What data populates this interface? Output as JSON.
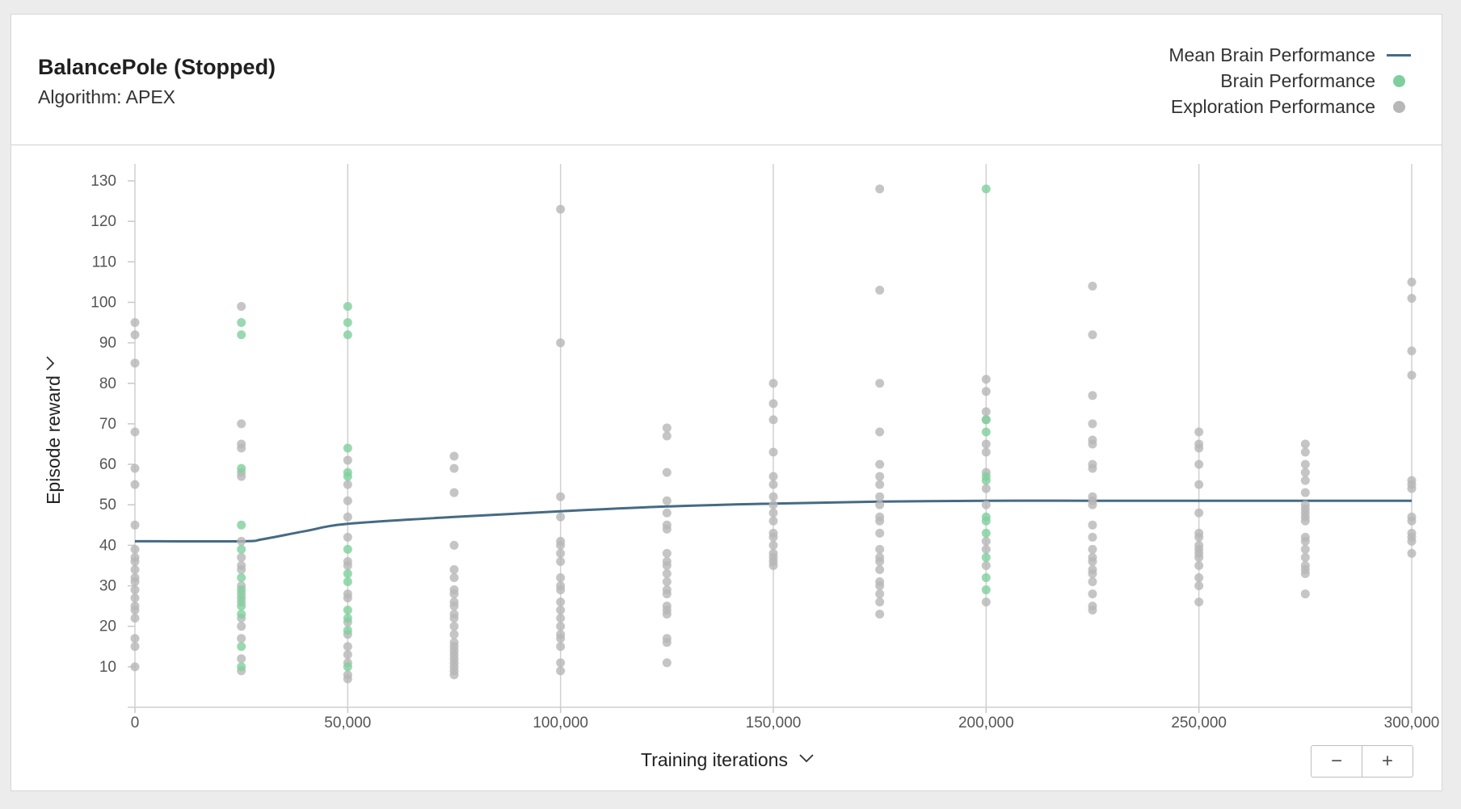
{
  "header": {
    "title": "BalancePole (Stopped)",
    "subtitle": "Algorithm: APEX"
  },
  "legend": [
    {
      "label": "Mean Brain Performance",
      "kind": "line",
      "color": "#456b84"
    },
    {
      "label": "Brain Performance",
      "kind": "dot",
      "color": "#7fcf9c"
    },
    {
      "label": "Exploration Performance",
      "kind": "dot",
      "color": "#b7b7b7"
    }
  ],
  "controls": {
    "zoom_out": "−",
    "zoom_in": "+"
  },
  "chart_data": {
    "type": "scatter",
    "xlabel": "Training iterations",
    "ylabel": "Episode reward",
    "xlim": [
      0,
      300000
    ],
    "ylim": [
      0,
      130
    ],
    "xticks": [
      0,
      50000,
      100000,
      150000,
      200000,
      250000,
      300000
    ],
    "xtick_labels": [
      "0",
      "50,000",
      "100,000",
      "150,000",
      "200,000",
      "250,000",
      "300,000"
    ],
    "yticks": [
      10,
      20,
      30,
      40,
      50,
      60,
      70,
      80,
      90,
      100,
      110,
      120,
      130
    ],
    "vertical_grid": true,
    "horizontal_grid": false,
    "legend_position": "top-right",
    "series": [
      {
        "name": "Mean Brain Performance",
        "type": "line",
        "color": "#456b84",
        "points": [
          [
            0,
            41
          ],
          [
            25000,
            41
          ],
          [
            30000,
            41.5
          ],
          [
            40000,
            43.5
          ],
          [
            50000,
            45.3
          ],
          [
            75000,
            47
          ],
          [
            100000,
            48.4
          ],
          [
            125000,
            49.6
          ],
          [
            150000,
            50.3
          ],
          [
            175000,
            50.8
          ],
          [
            200000,
            51
          ],
          [
            225000,
            51
          ],
          [
            250000,
            51
          ],
          [
            275000,
            51
          ],
          [
            300000,
            51
          ]
        ]
      },
      {
        "name": "Brain Performance",
        "type": "scatter",
        "color": "#7fcf9c",
        "points": [
          [
            25000,
            95
          ],
          [
            25000,
            92
          ],
          [
            25000,
            59
          ],
          [
            25000,
            45
          ],
          [
            25000,
            39
          ],
          [
            25000,
            32
          ],
          [
            25000,
            29
          ],
          [
            25000,
            27
          ],
          [
            25000,
            25
          ],
          [
            25000,
            23
          ],
          [
            25000,
            15
          ],
          [
            25000,
            10
          ],
          [
            50000,
            99
          ],
          [
            50000,
            95
          ],
          [
            50000,
            92
          ],
          [
            50000,
            64
          ],
          [
            50000,
            58
          ],
          [
            50000,
            57
          ],
          [
            50000,
            39
          ],
          [
            50000,
            33
          ],
          [
            50000,
            31
          ],
          [
            50000,
            24
          ],
          [
            50000,
            22
          ],
          [
            50000,
            19
          ],
          [
            50000,
            10
          ],
          [
            200000,
            128
          ],
          [
            200000,
            71
          ],
          [
            200000,
            68
          ],
          [
            200000,
            57
          ],
          [
            200000,
            56
          ],
          [
            200000,
            47
          ],
          [
            200000,
            46
          ],
          [
            200000,
            43
          ],
          [
            200000,
            37
          ],
          [
            200000,
            32
          ],
          [
            200000,
            29
          ]
        ]
      },
      {
        "name": "Exploration Performance",
        "type": "scatter",
        "color": "#b7b7b7",
        "points": [
          [
            0,
            95
          ],
          [
            0,
            92
          ],
          [
            0,
            85
          ],
          [
            0,
            68
          ],
          [
            0,
            59
          ],
          [
            0,
            55
          ],
          [
            0,
            45
          ],
          [
            0,
            39
          ],
          [
            0,
            37
          ],
          [
            0,
            36
          ],
          [
            0,
            34
          ],
          [
            0,
            32
          ],
          [
            0,
            31
          ],
          [
            0,
            29
          ],
          [
            0,
            27
          ],
          [
            0,
            25
          ],
          [
            0,
            24
          ],
          [
            0,
            22
          ],
          [
            0,
            17
          ],
          [
            0,
            15
          ],
          [
            0,
            10
          ],
          [
            25000,
            99
          ],
          [
            25000,
            70
          ],
          [
            25000,
            65
          ],
          [
            25000,
            64
          ],
          [
            25000,
            58
          ],
          [
            25000,
            57
          ],
          [
            25000,
            41
          ],
          [
            25000,
            37
          ],
          [
            25000,
            35
          ],
          [
            25000,
            34
          ],
          [
            25000,
            30
          ],
          [
            25000,
            28
          ],
          [
            25000,
            26
          ],
          [
            25000,
            22
          ],
          [
            25000,
            20
          ],
          [
            25000,
            17
          ],
          [
            25000,
            12
          ],
          [
            25000,
            9
          ],
          [
            50000,
            61
          ],
          [
            50000,
            55
          ],
          [
            50000,
            51
          ],
          [
            50000,
            47
          ],
          [
            50000,
            42
          ],
          [
            50000,
            36
          ],
          [
            50000,
            35
          ],
          [
            50000,
            28
          ],
          [
            50000,
            27
          ],
          [
            50000,
            21
          ],
          [
            50000,
            18
          ],
          [
            50000,
            15
          ],
          [
            50000,
            13
          ],
          [
            50000,
            11
          ],
          [
            50000,
            8
          ],
          [
            50000,
            7
          ],
          [
            75000,
            62
          ],
          [
            75000,
            59
          ],
          [
            75000,
            53
          ],
          [
            75000,
            40
          ],
          [
            75000,
            34
          ],
          [
            75000,
            32
          ],
          [
            75000,
            29
          ],
          [
            75000,
            28
          ],
          [
            75000,
            26
          ],
          [
            75000,
            25
          ],
          [
            75000,
            23
          ],
          [
            75000,
            22
          ],
          [
            75000,
            20
          ],
          [
            75000,
            18
          ],
          [
            75000,
            16
          ],
          [
            75000,
            15
          ],
          [
            75000,
            14
          ],
          [
            75000,
            13
          ],
          [
            75000,
            12
          ],
          [
            75000,
            11
          ],
          [
            75000,
            10
          ],
          [
            75000,
            9
          ],
          [
            75000,
            8
          ],
          [
            100000,
            123
          ],
          [
            100000,
            90
          ],
          [
            100000,
            52
          ],
          [
            100000,
            47
          ],
          [
            100000,
            41
          ],
          [
            100000,
            40
          ],
          [
            100000,
            38
          ],
          [
            100000,
            36
          ],
          [
            100000,
            32
          ],
          [
            100000,
            30
          ],
          [
            100000,
            29
          ],
          [
            100000,
            26
          ],
          [
            100000,
            24
          ],
          [
            100000,
            22
          ],
          [
            100000,
            20
          ],
          [
            100000,
            18
          ],
          [
            100000,
            17
          ],
          [
            100000,
            15
          ],
          [
            100000,
            11
          ],
          [
            100000,
            9
          ],
          [
            125000,
            69
          ],
          [
            125000,
            67
          ],
          [
            125000,
            58
          ],
          [
            125000,
            51
          ],
          [
            125000,
            48
          ],
          [
            125000,
            45
          ],
          [
            125000,
            44
          ],
          [
            125000,
            38
          ],
          [
            125000,
            36
          ],
          [
            125000,
            35
          ],
          [
            125000,
            33
          ],
          [
            125000,
            31
          ],
          [
            125000,
            29
          ],
          [
            125000,
            28
          ],
          [
            125000,
            25
          ],
          [
            125000,
            24
          ],
          [
            125000,
            23
          ],
          [
            125000,
            17
          ],
          [
            125000,
            16
          ],
          [
            125000,
            11
          ],
          [
            150000,
            80
          ],
          [
            150000,
            75
          ],
          [
            150000,
            71
          ],
          [
            150000,
            63
          ],
          [
            150000,
            57
          ],
          [
            150000,
            55
          ],
          [
            150000,
            52
          ],
          [
            150000,
            50
          ],
          [
            150000,
            48
          ],
          [
            150000,
            46
          ],
          [
            150000,
            43
          ],
          [
            150000,
            42
          ],
          [
            150000,
            40
          ],
          [
            150000,
            38
          ],
          [
            150000,
            37
          ],
          [
            150000,
            36
          ],
          [
            150000,
            35
          ],
          [
            175000,
            128
          ],
          [
            175000,
            103
          ],
          [
            175000,
            80
          ],
          [
            175000,
            68
          ],
          [
            175000,
            60
          ],
          [
            175000,
            57
          ],
          [
            175000,
            55
          ],
          [
            175000,
            52
          ],
          [
            175000,
            50
          ],
          [
            175000,
            47
          ],
          [
            175000,
            46
          ],
          [
            175000,
            43
          ],
          [
            175000,
            39
          ],
          [
            175000,
            37
          ],
          [
            175000,
            36
          ],
          [
            175000,
            34
          ],
          [
            175000,
            31
          ],
          [
            175000,
            30
          ],
          [
            175000,
            28
          ],
          [
            175000,
            26
          ],
          [
            175000,
            23
          ],
          [
            200000,
            81
          ],
          [
            200000,
            78
          ],
          [
            200000,
            73
          ],
          [
            200000,
            71
          ],
          [
            200000,
            65
          ],
          [
            200000,
            63
          ],
          [
            200000,
            58
          ],
          [
            200000,
            54
          ],
          [
            200000,
            50
          ],
          [
            200000,
            41
          ],
          [
            200000,
            39
          ],
          [
            200000,
            35
          ],
          [
            200000,
            26
          ],
          [
            225000,
            104
          ],
          [
            225000,
            92
          ],
          [
            225000,
            77
          ],
          [
            225000,
            70
          ],
          [
            225000,
            66
          ],
          [
            225000,
            65
          ],
          [
            225000,
            60
          ],
          [
            225000,
            59
          ],
          [
            225000,
            52
          ],
          [
            225000,
            51
          ],
          [
            225000,
            50
          ],
          [
            225000,
            45
          ],
          [
            225000,
            42
          ],
          [
            225000,
            39
          ],
          [
            225000,
            37
          ],
          [
            225000,
            36
          ],
          [
            225000,
            34
          ],
          [
            225000,
            33
          ],
          [
            225000,
            31
          ],
          [
            225000,
            28
          ],
          [
            225000,
            25
          ],
          [
            225000,
            24
          ],
          [
            250000,
            68
          ],
          [
            250000,
            65
          ],
          [
            250000,
            64
          ],
          [
            250000,
            60
          ],
          [
            250000,
            55
          ],
          [
            250000,
            48
          ],
          [
            250000,
            43
          ],
          [
            250000,
            42
          ],
          [
            250000,
            40
          ],
          [
            250000,
            39
          ],
          [
            250000,
            38
          ],
          [
            250000,
            37
          ],
          [
            250000,
            35
          ],
          [
            250000,
            32
          ],
          [
            250000,
            30
          ],
          [
            250000,
            26
          ],
          [
            275000,
            65
          ],
          [
            275000,
            63
          ],
          [
            275000,
            60
          ],
          [
            275000,
            58
          ],
          [
            275000,
            56
          ],
          [
            275000,
            53
          ],
          [
            275000,
            50
          ],
          [
            275000,
            49
          ],
          [
            275000,
            48
          ],
          [
            275000,
            47
          ],
          [
            275000,
            46
          ],
          [
            275000,
            42
          ],
          [
            275000,
            41
          ],
          [
            275000,
            39
          ],
          [
            275000,
            37
          ],
          [
            275000,
            35
          ],
          [
            275000,
            34
          ],
          [
            275000,
            33
          ],
          [
            275000,
            28
          ],
          [
            300000,
            105
          ],
          [
            300000,
            101
          ],
          [
            300000,
            88
          ],
          [
            300000,
            82
          ],
          [
            300000,
            56
          ],
          [
            300000,
            55
          ],
          [
            300000,
            54
          ],
          [
            300000,
            47
          ],
          [
            300000,
            46
          ],
          [
            300000,
            43
          ],
          [
            300000,
            42
          ],
          [
            300000,
            41
          ],
          [
            300000,
            38
          ]
        ]
      }
    ]
  }
}
